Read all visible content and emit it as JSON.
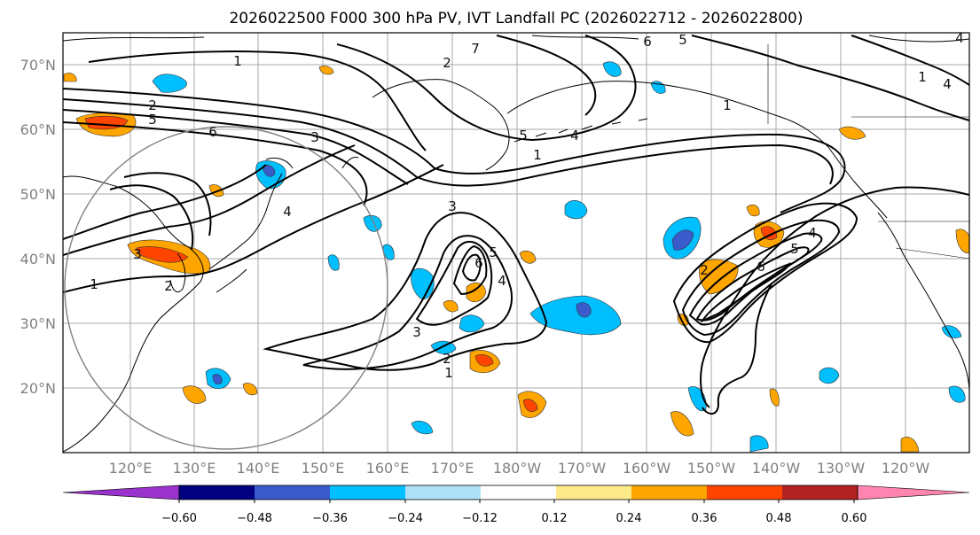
{
  "title": "2026022500 F000 300 hPa PV, IVT Landfall PC (2026022712 - 2026022800)",
  "map": {
    "lon_labels": [
      "120°E",
      "130°E",
      "140°E",
      "150°E",
      "160°E",
      "170°E",
      "180°W",
      "170°W",
      "160°W",
      "150°W",
      "140°W",
      "130°W",
      "120°W"
    ],
    "lat_labels": [
      "70°N",
      "60°N",
      "50°N",
      "40°N",
      "30°N",
      "20°N"
    ],
    "contour_labels": [
      "1",
      "2",
      "5",
      "6",
      "3",
      "1",
      "4",
      "7",
      "6",
      "5",
      "2",
      "5",
      "4",
      "1",
      "3",
      "1",
      "4",
      "6",
      "4",
      "5",
      "3",
      "2",
      "1",
      "1",
      "2",
      "6",
      "5",
      "4",
      "2",
      "3",
      "4"
    ]
  },
  "colorbar": {
    "colors": [
      "#9933cc",
      "#000080",
      "#3a5bcb",
      "#00bfff",
      "#aee1f7",
      "#ffffff",
      "#ffea8a",
      "#ffa500",
      "#ff4500",
      "#b22222",
      "#ff85b0"
    ],
    "ticks": [
      "−0.60",
      "−0.48",
      "−0.36",
      "−0.24",
      "−0.12",
      "0.12",
      "0.24",
      "0.36",
      "0.48",
      "0.60"
    ]
  }
}
